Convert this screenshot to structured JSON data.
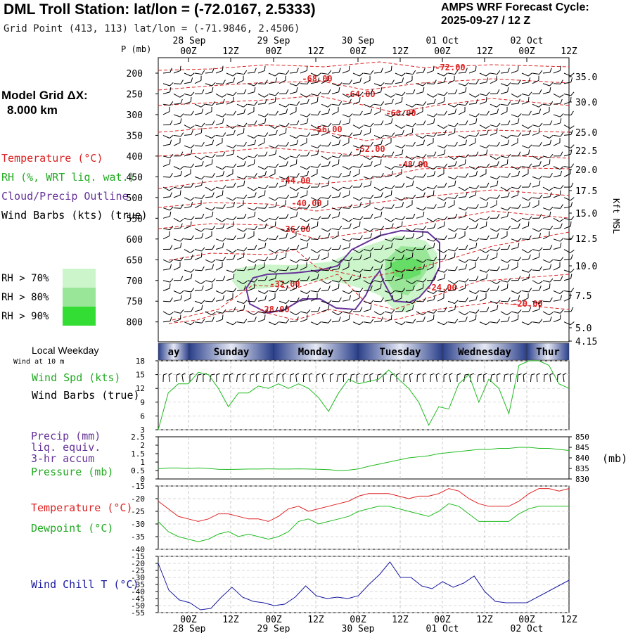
{
  "header": {
    "title": "DML Troll Station:  lat/lon = (-72.0167, 2.5333)",
    "subtitle": "Grid Point (413, 113) lat/lon = (-71.9846, 2.4506)",
    "cycle_label": "AMPS WRF Forecast Cycle:",
    "cycle_value": "2025-09-27 / 12  Z"
  },
  "left_panel": {
    "grid_label": "Model Grid ΔX:",
    "grid_value": "8.000 km",
    "legend": [
      {
        "label": "Temperature (°C)",
        "color": "#dd2222"
      },
      {
        "label": "RH (%, WRT liq. wat.)",
        "color": "#22aa22"
      },
      {
        "label": "Cloud/Precip Outline",
        "color": "#663399"
      },
      {
        "label": "Wind Barbs (kts) (true)",
        "color": "#000000"
      }
    ],
    "rh_thresholds": [
      {
        "label": "RH > 70%",
        "color": "#ccf5cc"
      },
      {
        "label": "RH > 80%",
        "color": "#99e699"
      },
      {
        "label": "RH > 90%",
        "color": "#33dd33"
      }
    ]
  },
  "time_axis": {
    "date_labels": [
      "28 Sep",
      "29 Sep",
      "30 Sep",
      "01 Oct",
      "02 Oct"
    ],
    "hour_labels": [
      "00Z",
      "12Z",
      "00Z",
      "12Z",
      "00Z",
      "12Z",
      "00Z",
      "12Z",
      "00Z",
      "12Z"
    ],
    "weekdays": [
      "ay",
      "Sunday",
      "Monday",
      "Tuesday",
      "Wednesday",
      "Thur"
    ],
    "p_label": "P (mb)"
  },
  "chart_data": [
    {
      "type": "line",
      "panel": "vertical cross-section",
      "ylabel": "P (mb)",
      "y_ticks": [
        200,
        250,
        300,
        350,
        400,
        450,
        500,
        550,
        600,
        650,
        700,
        750,
        800
      ],
      "right_axis_label": "Kft MSL",
      "right_ticks": [
        "35.0",
        "30.0",
        "25.0",
        "22.5",
        "20.0",
        "17.5",
        "15.0",
        "12.5",
        "10.0",
        "7.5",
        "5.0",
        "4.15"
      ],
      "temperature_contour_labels": [
        "-72.00",
        "-68.00",
        "-64.00",
        "-60.00",
        "-56.00",
        "-52.00",
        "-48.00",
        "-44.00",
        "-40.00",
        "-36.00",
        "-32.00",
        "-28.00",
        "-24.00",
        "-20.00"
      ]
    },
    {
      "type": "line",
      "panel": "wind",
      "left_labels": [
        "Local Weekday",
        "Wind at 10 m",
        "Wind Spd (kts)",
        "Wind Barbs (true)"
      ],
      "y_ticks": [
        3,
        6,
        9,
        12,
        15,
        18
      ],
      "ylim": [
        3,
        18
      ],
      "series": [
        {
          "name": "Wind Spd (kts)",
          "color": "#22bb22",
          "values": [
            3,
            11,
            13,
            13,
            15.5,
            15,
            12,
            8,
            11,
            11,
            12.5,
            12,
            13,
            12,
            13,
            12,
            10,
            7,
            11,
            14,
            13,
            13.5,
            14,
            16,
            14,
            12,
            9,
            4,
            8,
            7.5,
            13,
            15,
            9,
            14,
            12,
            6.5,
            17,
            18,
            18,
            17,
            13,
            12
          ]
        }
      ]
    },
    {
      "type": "line",
      "panel": "precip-pressure",
      "left_labels": [
        "Precip (mm)",
        "liq. equiv.",
        "3-hr accum",
        "Pressure (mb)"
      ],
      "left_ticks": [
        "2.5",
        "2",
        "1.5",
        "1",
        "0.5",
        "0"
      ],
      "right_ticks": [
        "850",
        "845",
        "840",
        "835",
        "830"
      ],
      "right_unit": "(mb)",
      "ylim_right": [
        830,
        850
      ],
      "series": [
        {
          "name": "Pressure (mb)",
          "color": "#22bb22",
          "values": [
            834.8,
            835.2,
            835.2,
            835.0,
            835.2,
            835.0,
            834.6,
            834.5,
            834.6,
            834.7,
            834.7,
            834.8,
            834.7,
            834.7,
            834.8,
            834.7,
            834.6,
            834.4,
            834.0,
            834.2,
            834.8,
            836.0,
            837.0,
            838.0,
            839.0,
            840.0,
            840.5,
            841.0,
            842.0,
            842.5,
            843.0,
            843.5,
            844.0,
            844.0,
            844.5,
            844.5,
            845.0,
            845.0,
            844.5,
            844.5,
            844.0,
            843.5
          ]
        }
      ]
    },
    {
      "type": "line",
      "panel": "temperature-dewpoint",
      "left_labels": [
        "Temperature (°C)",
        "Dewpoint (°C)"
      ],
      "y_ticks": [
        -40,
        -35,
        -30,
        -25,
        -20,
        -15
      ],
      "ylim": [
        -40,
        -15
      ],
      "series": [
        {
          "name": "Temperature (°C)",
          "color": "#dd2222",
          "values": [
            -21,
            -24,
            -27,
            -28,
            -29,
            -28,
            -26,
            -26,
            -27,
            -28,
            -28,
            -29,
            -27,
            -24,
            -23,
            -25,
            -24,
            -23,
            -22,
            -21,
            -19,
            -18,
            -18,
            -18,
            -19,
            -20,
            -19,
            -19,
            -18,
            -16,
            -17,
            -20,
            -22,
            -23,
            -23,
            -23,
            -21,
            -18,
            -16,
            -16,
            -17,
            -16
          ]
        },
        {
          "name": "Dewpoint (°C)",
          "color": "#22bb22",
          "values": [
            -29,
            -33,
            -35,
            -36,
            -37,
            -36,
            -34,
            -33,
            -35,
            -34,
            -35,
            -36,
            -35,
            -33,
            -29,
            -28,
            -30,
            -29,
            -28,
            -27,
            -25,
            -24,
            -23,
            -23,
            -24,
            -25,
            -26,
            -27,
            -25,
            -22,
            -23,
            -26,
            -29,
            -29,
            -29,
            -29,
            -26,
            -24,
            -23,
            -23,
            -23,
            -23
          ]
        }
      ]
    },
    {
      "type": "line",
      "panel": "wind chill",
      "left_labels": [
        "Wind Chill T (°C)"
      ],
      "y_ticks": [
        -55,
        -50,
        -45,
        -40,
        -35,
        -30,
        -25,
        -20,
        -15
      ],
      "ylim": [
        -55,
        -15
      ],
      "series": [
        {
          "name": "Wind Chill T (°C)",
          "color": "#1a1aa0",
          "values": [
            -20,
            -39,
            -46,
            -48,
            -53,
            -52,
            -44,
            -37,
            -44,
            -47,
            -48,
            -50,
            -49,
            -44,
            -36,
            -43,
            -45,
            -44,
            -45,
            -43,
            -35,
            -28,
            -19,
            -30,
            -30,
            -36,
            -38,
            -33,
            -37,
            -34,
            -29,
            -40,
            -47,
            -48,
            -48,
            -48,
            -44,
            -40,
            -36,
            -32
          ]
        }
      ]
    }
  ]
}
